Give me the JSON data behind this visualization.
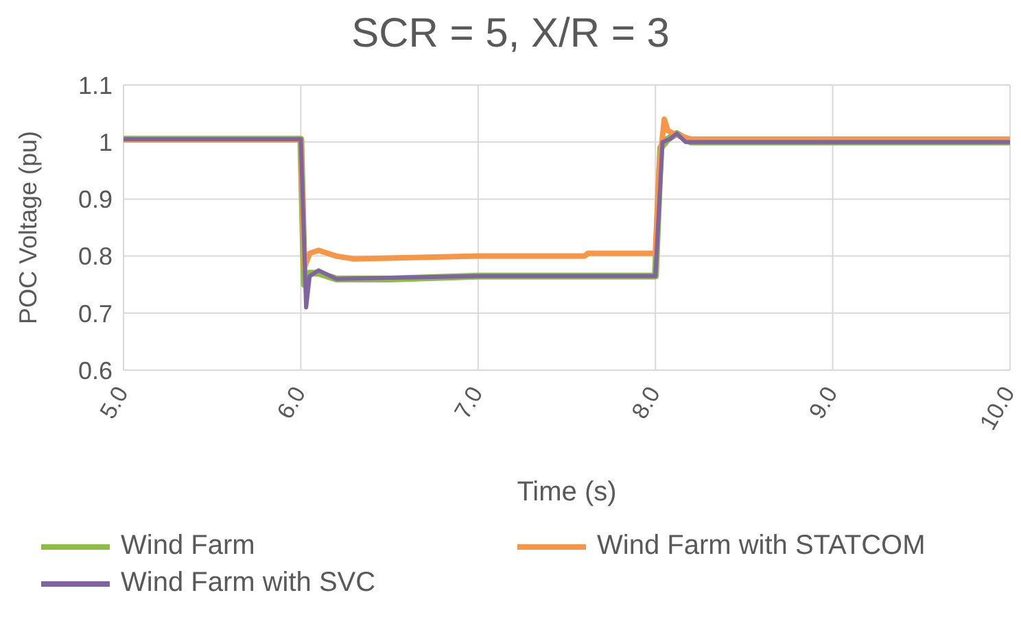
{
  "chart_data": {
    "type": "line",
    "title": "SCR = 5, X/R = 3",
    "xlabel": "Time  (s)",
    "ylabel": "POC Voltage (pu)",
    "xlim": [
      5,
      10
    ],
    "xticks": [
      {
        "value": 5,
        "label": "5.0"
      },
      {
        "value": 6,
        "label": "6.0"
      },
      {
        "value": 7,
        "label": "7.0"
      },
      {
        "value": 8,
        "label": "8.0"
      },
      {
        "value": 9,
        "label": "9.0"
      },
      {
        "value": 10,
        "label": "10.0"
      }
    ],
    "ylim": [
      0.6,
      1.1
    ],
    "yticks": [
      0.6,
      0.7,
      0.8,
      0.9,
      1,
      1.1
    ],
    "grid": true,
    "legend": "bottom",
    "marker": "none",
    "line_style": "solid",
    "series": [
      {
        "name": "Wind Farm",
        "color": "#8cbd45",
        "x": [
          5,
          6,
          6.02,
          6.05,
          6.1,
          6.2,
          6.5,
          7,
          8,
          8.03,
          8.07,
          8.12,
          8.2,
          8.5,
          10
        ],
        "values": [
          1.005,
          1.005,
          0.75,
          0.77,
          0.77,
          0.76,
          0.76,
          0.765,
          0.765,
          0.99,
          1.005,
          1.015,
          1,
          1,
          1
        ]
      },
      {
        "name": "Wind Farm with STATCOM",
        "color": "#f79646",
        "x": [
          5,
          6,
          6.02,
          6.05,
          6.1,
          6.2,
          6.3,
          7,
          7.6,
          7.62,
          8,
          8.02,
          8.05,
          8.07,
          8.1,
          8.2,
          8.5,
          10
        ],
        "values": [
          1.005,
          1.005,
          0.78,
          0.805,
          0.81,
          0.8,
          0.795,
          0.8,
          0.8,
          0.805,
          0.805,
          0.95,
          1.04,
          1.02,
          1.015,
          1.005,
          1.005,
          1.005
        ]
      },
      {
        "name": "Wind Farm with SVC",
        "color": "#8064a2",
        "x": [
          5,
          6,
          6.03,
          6.05,
          6.1,
          6.2,
          7,
          8,
          8.04,
          8.08,
          8.12,
          8.17,
          10
        ],
        "values": [
          1.005,
          1.005,
          0.71,
          0.765,
          0.775,
          0.76,
          0.765,
          0.765,
          1,
          1.005,
          1.015,
          1,
          1
        ]
      }
    ]
  }
}
